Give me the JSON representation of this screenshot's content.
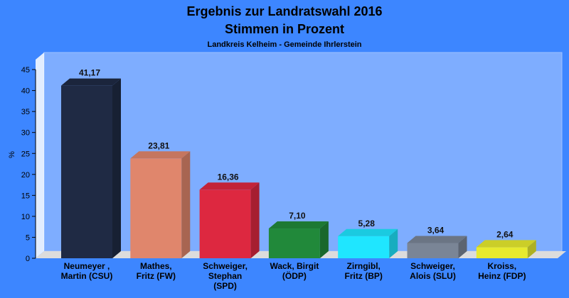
{
  "chart_data": {
    "type": "bar",
    "title": "Ergebnis zur Landratswahl 2016",
    "title2": "Stimmen in Prozent",
    "subtitle": "Landkreis Kelheim - Gemeinde Ihrlerstein",
    "ylabel": "%",
    "ylim": [
      0,
      45
    ],
    "yticks": [
      0,
      5,
      10,
      15,
      20,
      25,
      30,
      35,
      40,
      45
    ],
    "grid": false,
    "categories": [
      [
        "Neumeyer ,",
        "Martin (CSU)"
      ],
      [
        "Mathes,",
        "Fritz (FW)"
      ],
      [
        "Schweiger,",
        "Stephan",
        "(SPD)"
      ],
      [
        "Wack, Birgit",
        "(ÖDP)"
      ],
      [
        "Zirngibl,",
        "Fritz (BP)"
      ],
      [
        "Schweiger,",
        "Alois (SLU)"
      ],
      [
        "Kroiss,",
        "Heinz (FDP)"
      ]
    ],
    "values": [
      41.17,
      23.81,
      16.36,
      7.1,
      5.28,
      3.64,
      2.64
    ],
    "value_labels": [
      "41,17",
      "23,81",
      "16,36",
      "7,10",
      "5,28",
      "3,64",
      "2,64"
    ],
    "colors": [
      "#1f2a44",
      "#e0866c",
      "#dd2840",
      "#21893a",
      "#1fe6ff",
      "#7a8596",
      "#e7ea2e"
    ]
  }
}
